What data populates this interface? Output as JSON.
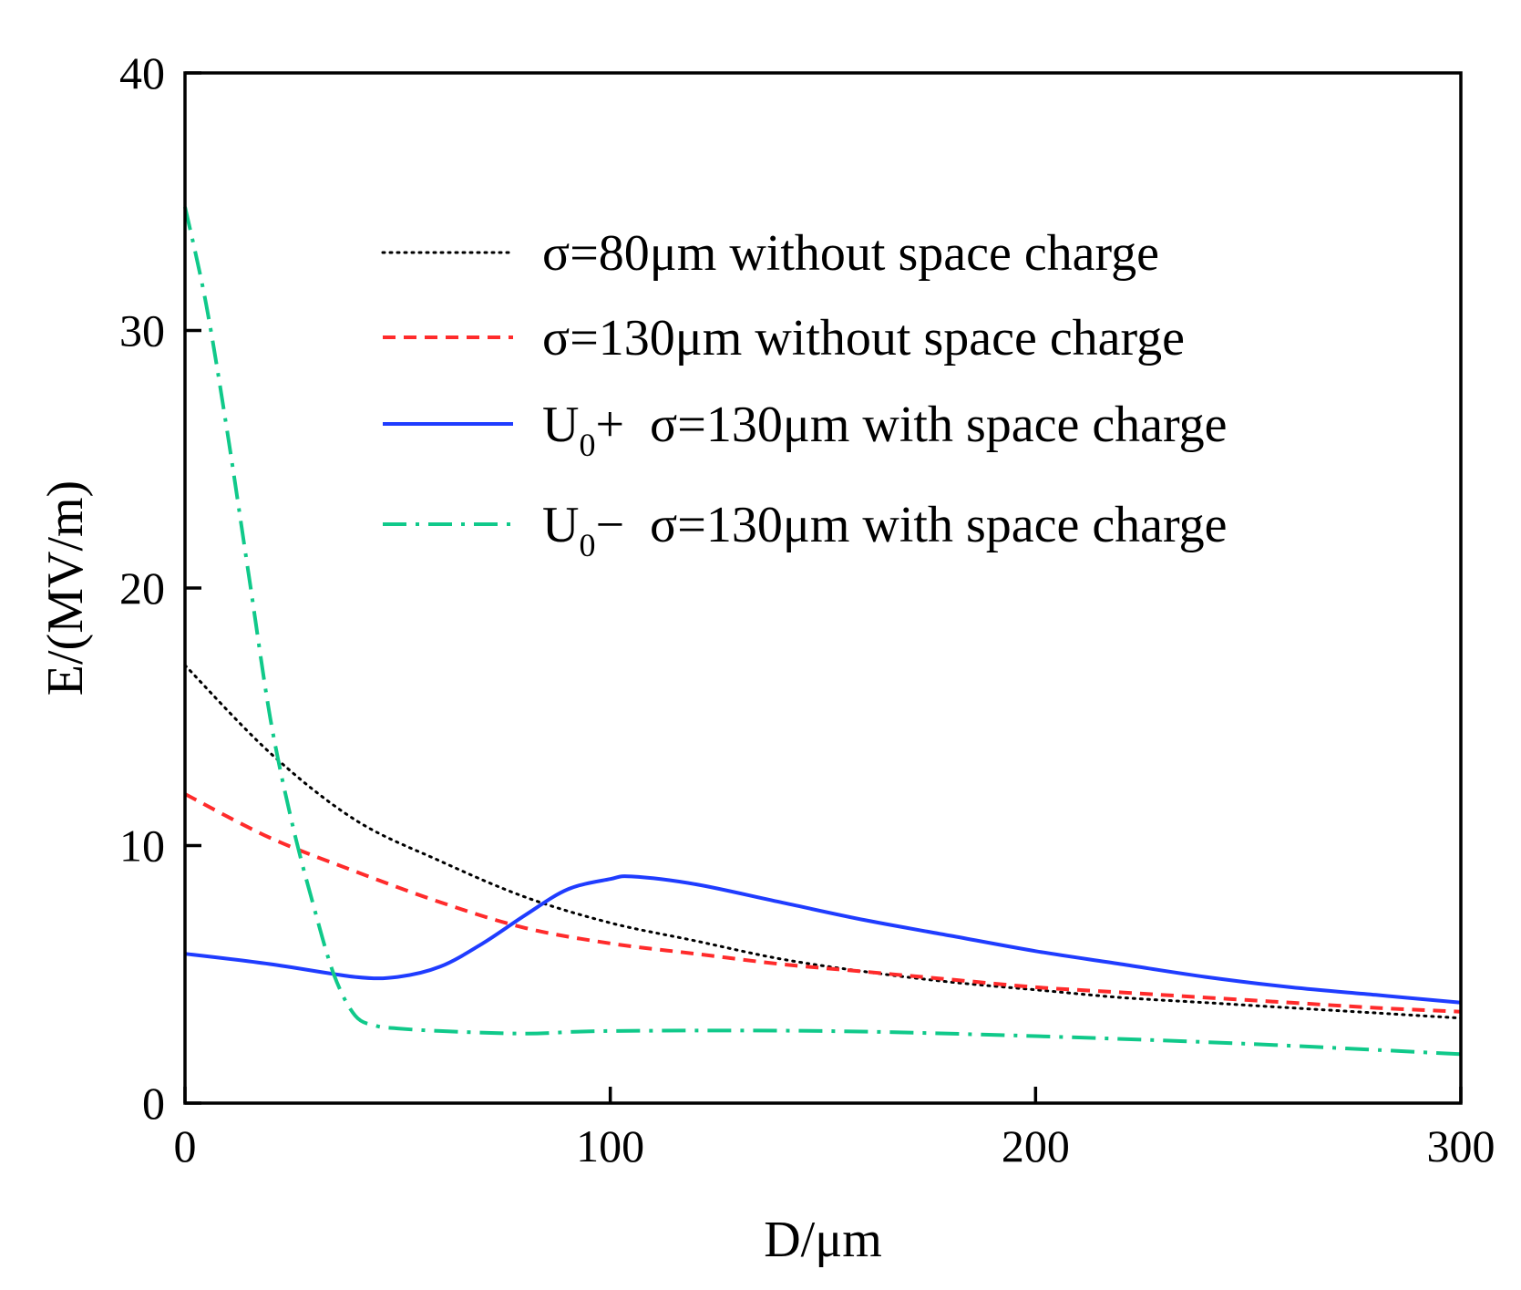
{
  "chart_data": {
    "type": "line",
    "title": "",
    "xlabel": "D/μm",
    "ylabel": "E/(MV/m)",
    "xlim": [
      0,
      300
    ],
    "ylim": [
      0,
      40
    ],
    "xticks": [
      0,
      100,
      200,
      300
    ],
    "yticks": [
      0,
      10,
      20,
      30,
      40
    ],
    "grid": false,
    "legend_position": "top-right",
    "series": [
      {
        "name": "σ=80μm  without space charge",
        "label_main": "σ=80μm  without space charge",
        "label_sub": "",
        "label_sup": "",
        "label_rest": "",
        "color": "#000000",
        "style": "dotted",
        "x": [
          0,
          20,
          40,
          60,
          80,
          100,
          120,
          140,
          160,
          180,
          200,
          220,
          240,
          260,
          280,
          300
        ],
        "y": [
          17.0,
          13.6,
          11.0,
          9.4,
          8.0,
          7.0,
          6.3,
          5.6,
          5.1,
          4.7,
          4.4,
          4.1,
          3.9,
          3.7,
          3.5,
          3.3
        ]
      },
      {
        "name": "σ=130μm  without space charge",
        "label_main": "σ=130μm  without space charge",
        "label_sub": "",
        "label_sup": "",
        "label_rest": "",
        "color": "#ff2b2b",
        "style": "dashed",
        "x": [
          0,
          20,
          40,
          60,
          80,
          100,
          120,
          140,
          160,
          180,
          200,
          220,
          240,
          260,
          280,
          300
        ],
        "y": [
          12.0,
          10.3,
          9.0,
          7.8,
          6.8,
          6.2,
          5.8,
          5.4,
          5.1,
          4.8,
          4.5,
          4.3,
          4.1,
          3.9,
          3.7,
          3.55
        ]
      },
      {
        "name": "U0+  σ=130μm  with space charge",
        "label_main": "U",
        "label_sub": "0",
        "label_sup": "+",
        "label_rest": "σ=130μm  with space charge",
        "color": "#1f3cff",
        "style": "solid",
        "x": [
          0,
          20,
          40,
          50,
          60,
          70,
          80,
          90,
          100,
          105,
          120,
          140,
          160,
          180,
          200,
          220,
          240,
          260,
          280,
          300
        ],
        "y": [
          5.8,
          5.4,
          4.9,
          4.9,
          5.3,
          6.2,
          7.3,
          8.3,
          8.7,
          8.8,
          8.5,
          7.8,
          7.1,
          6.5,
          5.9,
          5.4,
          4.9,
          4.5,
          4.2,
          3.9
        ]
      },
      {
        "name": "U0−  σ=130μm  with space charge",
        "label_main": "U",
        "label_sub": "0",
        "label_sup": "−",
        "label_rest": "σ=130μm  with space charge",
        "color": "#10c98a",
        "style": "dashdot",
        "x": [
          0,
          5,
          10,
          15,
          20,
          25,
          30,
          35,
          40,
          45,
          50,
          60,
          80,
          100,
          150,
          200,
          250,
          300
        ],
        "y": [
          34.8,
          31.0,
          26.0,
          20.5,
          15.0,
          11.0,
          7.8,
          5.0,
          3.4,
          3.0,
          2.9,
          2.8,
          2.7,
          2.8,
          2.8,
          2.6,
          2.3,
          1.9
        ]
      }
    ]
  }
}
